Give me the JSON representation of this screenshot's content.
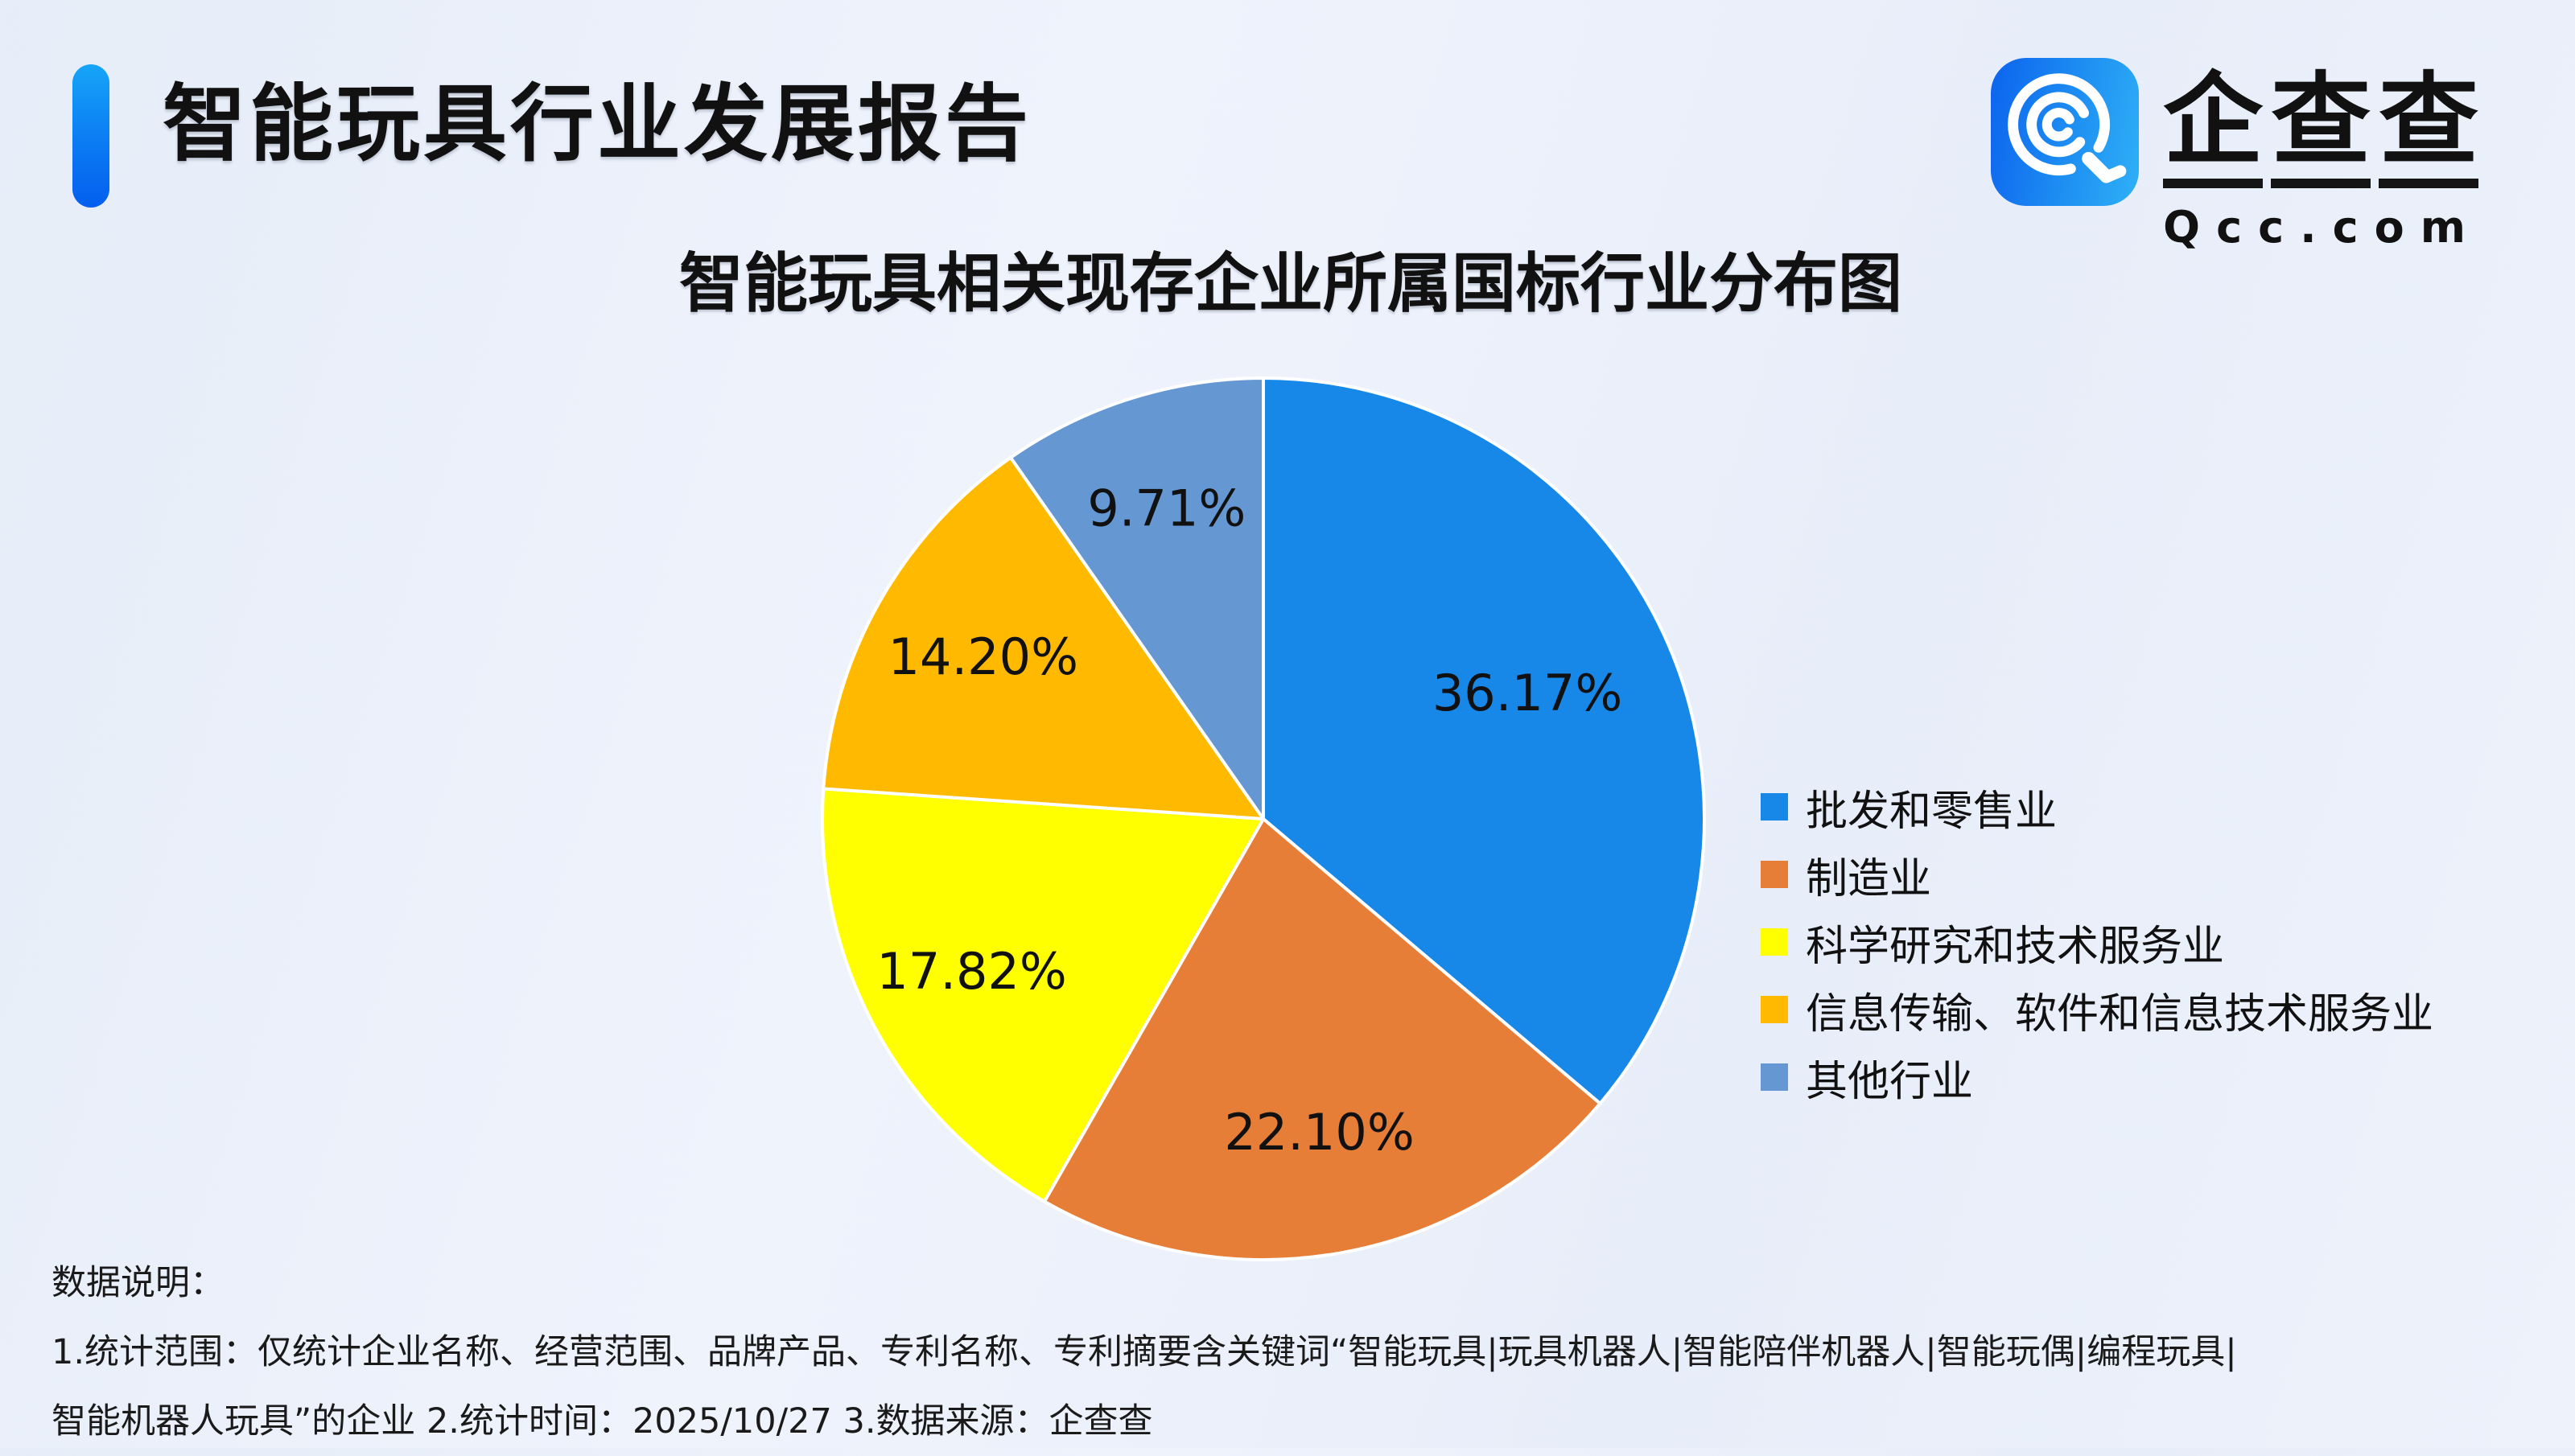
{
  "page": {
    "background_color": "#EBF0FA"
  },
  "header": {
    "title": "智能玩具行业发展报告"
  },
  "logo": {
    "name": "企查查",
    "name_chars": [
      "企",
      "查",
      "查"
    ],
    "domain": "Qcc.com",
    "icon": "qcc-magnifier-q-icon",
    "icon_colors": {
      "tile_gradient": [
        "#0C63EE",
        "#2FB0F7"
      ],
      "glyph": "#FFFFFF"
    }
  },
  "chart_data": {
    "type": "pie",
    "title": "智能玩具相关现存企业所属国标行业分布图",
    "start_angle": "12-oclock-clockwise",
    "label_position": "inside",
    "legend_position": "right",
    "slice_border_color": "#FFFFFF",
    "series": [
      {
        "name": "批发和零售业",
        "value": 36.17,
        "label": "36.17%",
        "color": "#1787E8"
      },
      {
        "name": "制造业",
        "value": 22.1,
        "label": "22.10%",
        "color": "#E77E38"
      },
      {
        "name": "科学研究和技术服务业",
        "value": 17.82,
        "label": "17.82%",
        "color": "#FFFF00"
      },
      {
        "name": "信息传输、软件和信息技术服务业",
        "value": 14.2,
        "label": "14.20%",
        "color": "#FFBA00"
      },
      {
        "name": "其他行业",
        "value": 9.71,
        "label": "9.71%",
        "color": "#6598D2"
      }
    ]
  },
  "footer": {
    "heading": "数据说明：",
    "line1": "1.统计范围：仅统计企业名称、经营范围、品牌产品、专利名称、专利摘要含关键词“智能玩具|玩具机器人|智能陪伴机器人|智能玩偶|编程玩具|",
    "line2": "智能机器人玩具”的企业 2.统计时间：2025/10/27 3.数据来源：企查查"
  }
}
